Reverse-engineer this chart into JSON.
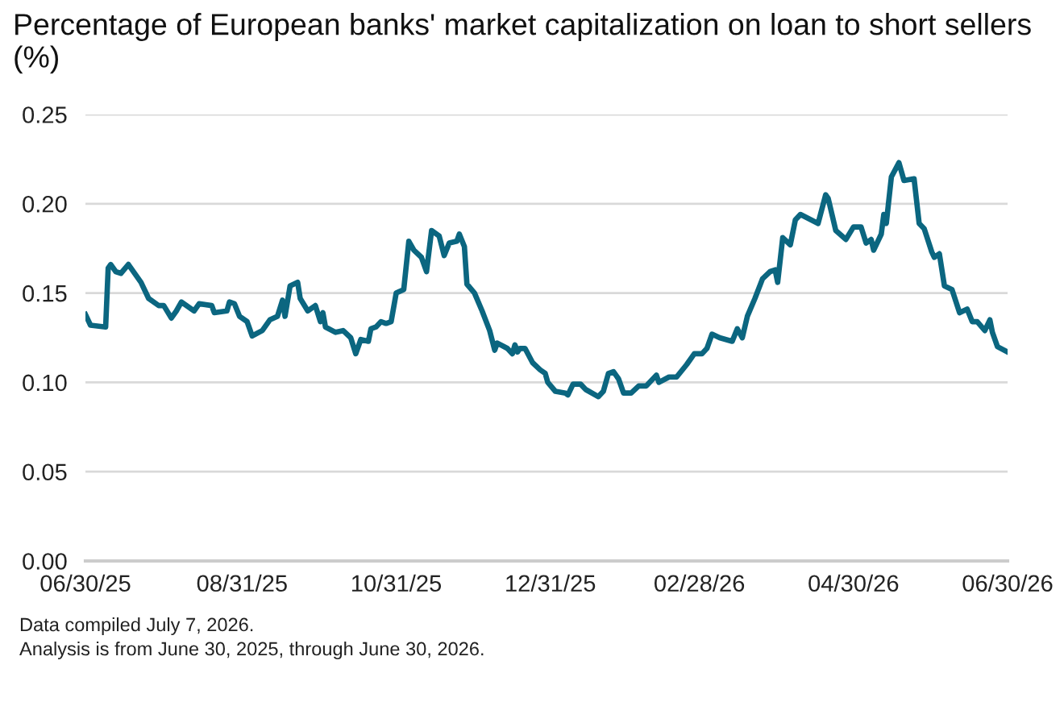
{
  "chart_data": {
    "type": "line",
    "title": "Percentage of European banks' market capitalization on loan to short sellers (%)",
    "x": [
      "2025-06-30",
      "2025-07-02",
      "2025-07-08",
      "2025-07-09",
      "2025-07-10",
      "2025-07-12",
      "2025-07-14",
      "2025-07-17",
      "2025-07-22",
      "2025-07-25",
      "2025-07-29",
      "2025-07-31",
      "2025-08-03",
      "2025-08-05",
      "2025-08-07",
      "2025-08-12",
      "2025-08-14",
      "2025-08-19",
      "2025-08-20",
      "2025-08-25",
      "2025-08-26",
      "2025-08-28",
      "2025-08-30",
      "2025-09-02",
      "2025-09-04",
      "2025-09-08",
      "2025-09-11",
      "2025-09-14",
      "2025-09-16",
      "2025-09-17",
      "2025-09-19",
      "2025-09-22",
      "2025-09-23",
      "2025-09-26",
      "2025-09-29",
      "2025-10-01",
      "2025-10-02",
      "2025-10-03",
      "2025-10-07",
      "2025-10-10",
      "2025-10-13",
      "2025-10-15",
      "2025-10-17",
      "2025-10-20",
      "2025-10-21",
      "2025-10-23",
      "2025-10-25",
      "2025-10-27",
      "2025-10-29",
      "2025-10-31",
      "2025-11-03",
      "2025-11-05",
      "2025-11-07",
      "2025-11-10",
      "2025-11-12",
      "2025-11-14",
      "2025-11-17",
      "2025-11-19",
      "2025-11-21",
      "2025-11-24",
      "2025-11-25",
      "2025-11-27",
      "2025-11-28",
      "2025-12-01",
      "2025-12-04",
      "2025-12-07",
      "2025-12-09",
      "2025-12-10",
      "2025-12-14",
      "2025-12-16",
      "2025-12-17",
      "2025-12-18",
      "2025-12-19",
      "2025-12-21",
      "2025-12-24",
      "2025-12-27",
      "2025-12-29",
      "2025-12-30",
      "2026-01-02",
      "2026-01-06",
      "2026-01-07",
      "2026-01-09",
      "2026-01-12",
      "2026-01-14",
      "2026-01-19",
      "2026-01-21",
      "2026-01-23",
      "2026-01-25",
      "2026-01-27",
      "2026-01-29",
      "2026-02-01",
      "2026-02-04",
      "2026-02-07",
      "2026-02-11",
      "2026-02-12",
      "2026-02-16",
      "2026-02-19",
      "2026-02-23",
      "2026-02-26",
      "2026-03-01",
      "2026-03-03",
      "2026-03-05",
      "2026-03-08",
      "2026-03-13",
      "2026-03-15",
      "2026-03-17",
      "2026-03-19",
      "2026-03-22",
      "2026-03-25",
      "2026-03-28",
      "2026-03-30",
      "2026-03-31",
      "2026-04-02",
      "2026-04-05",
      "2026-04-07",
      "2026-04-09",
      "2026-04-16",
      "2026-04-19",
      "2026-04-20",
      "2026-04-23",
      "2026-04-27",
      "2026-04-30",
      "2026-05-03",
      "2026-05-05",
      "2026-05-07",
      "2026-05-08",
      "2026-05-11",
      "2026-05-12",
      "2026-05-13",
      "2026-05-15",
      "2026-05-18",
      "2026-05-20",
      "2026-05-24",
      "2026-05-26",
      "2026-05-28",
      "2026-05-31",
      "2026-06-01",
      "2026-06-03",
      "2026-06-05",
      "2026-06-08",
      "2026-06-11",
      "2026-06-14",
      "2026-06-16",
      "2026-06-18",
      "2026-06-21",
      "2026-06-23",
      "2026-06-24",
      "2026-06-26",
      "2026-06-30"
    ],
    "series": [
      {
        "color": "#0b6680",
        "values": [
          0.138,
          0.132,
          0.131,
          0.164,
          0.166,
          0.162,
          0.161,
          0.166,
          0.156,
          0.147,
          0.143,
          0.143,
          0.136,
          0.14,
          0.145,
          0.14,
          0.144,
          0.143,
          0.139,
          0.14,
          0.145,
          0.144,
          0.137,
          0.134,
          0.126,
          0.129,
          0.135,
          0.137,
          0.146,
          0.137,
          0.154,
          0.156,
          0.147,
          0.14,
          0.143,
          0.134,
          0.139,
          0.131,
          0.128,
          0.129,
          0.125,
          0.116,
          0.124,
          0.123,
          0.13,
          0.131,
          0.134,
          0.133,
          0.134,
          0.15,
          0.152,
          0.179,
          0.174,
          0.17,
          0.162,
          0.185,
          0.182,
          0.171,
          0.178,
          0.179,
          0.183,
          0.176,
          0.155,
          0.15,
          0.14,
          0.129,
          0.118,
          0.122,
          0.119,
          0.116,
          0.121,
          0.117,
          0.119,
          0.119,
          0.111,
          0.107,
          0.105,
          0.1,
          0.095,
          0.094,
          0.093,
          0.099,
          0.099,
          0.096,
          0.092,
          0.095,
          0.105,
          0.106,
          0.102,
          0.094,
          0.094,
          0.098,
          0.098,
          0.104,
          0.1,
          0.103,
          0.103,
          0.11,
          0.116,
          0.116,
          0.119,
          0.127,
          0.125,
          0.123,
          0.13,
          0.125,
          0.137,
          0.147,
          0.158,
          0.162,
          0.163,
          0.156,
          0.181,
          0.177,
          0.191,
          0.194,
          0.189,
          0.205,
          0.203,
          0.185,
          0.18,
          0.187,
          0.187,
          0.178,
          0.18,
          0.174,
          0.183,
          0.194,
          0.189,
          0.215,
          0.223,
          0.213,
          0.214,
          0.189,
          0.186,
          0.173,
          0.17,
          0.172,
          0.154,
          0.152,
          0.139,
          0.141,
          0.134,
          0.134,
          0.129,
          0.135,
          0.128,
          0.12,
          0.117
        ]
      }
    ],
    "xlim": [
      "2025-06-30",
      "2026-06-30"
    ],
    "xticks": [
      {
        "value": "2025-06-30",
        "label": "06/30/25"
      },
      {
        "value": "2025-08-31",
        "label": "08/31/25"
      },
      {
        "value": "2025-10-31",
        "label": "10/31/25"
      },
      {
        "value": "2025-12-31",
        "label": "12/31/25"
      },
      {
        "value": "2026-02-28",
        "label": "02/28/26"
      },
      {
        "value": "2026-04-30",
        "label": "04/30/26"
      },
      {
        "value": "2026-06-30",
        "label": "06/30/26"
      }
    ],
    "ylim": [
      0,
      0.25
    ],
    "yticks": [
      {
        "value": 0,
        "label": "0.00"
      },
      {
        "value": 0.05,
        "label": "0.05"
      },
      {
        "value": 0.1,
        "label": "0.10"
      },
      {
        "value": 0.15,
        "label": "0.15"
      },
      {
        "value": 0.2,
        "label": "0.20"
      },
      {
        "value": 0.25,
        "label": "0.25"
      }
    ],
    "grid": "y",
    "line_style": "solid",
    "marker": "none",
    "annotations": [
      "Data compiled July 7, 2026.",
      "Analysis is from June 30, 2025, through June 30, 2026."
    ]
  }
}
